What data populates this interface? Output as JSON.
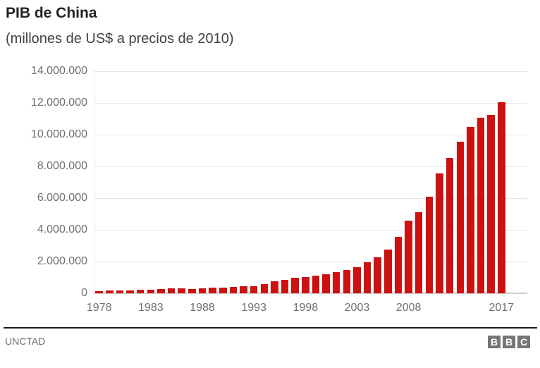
{
  "header": {
    "title": "PIB de China",
    "subtitle": "(millones de US$ a precios de 2010)"
  },
  "footer": {
    "source": "UNCTAD",
    "logo_letters": [
      "B",
      "B",
      "C"
    ]
  },
  "colors": {
    "bar": "#cc1111",
    "grid": "#e7e7e7",
    "axis": "#cfcfcf",
    "tick_text": "#6e6e73",
    "title_text": "#222222",
    "subtitle_text": "#404040",
    "footer_line": "#1a1a1a",
    "logo_bg": "#757575"
  },
  "chart_data": {
    "type": "bar",
    "title": "PIB de China",
    "subtitle": "(millones de US$ a precios de 2010)",
    "source": "UNCTAD",
    "xlabel": "",
    "ylabel": "",
    "grid": true,
    "legend": false,
    "ylim": [
      0,
      14000000
    ],
    "y_tick_values": [
      0,
      2000000,
      4000000,
      6000000,
      8000000,
      10000000,
      12000000,
      14000000
    ],
    "y_tick_labels": [
      "0",
      "2.000.000",
      "4.000.000",
      "6.000.000",
      "8.000.000",
      "10.000.000",
      "12.000.000",
      "14.000.000"
    ],
    "x_tick_years": [
      1978,
      1983,
      1988,
      1993,
      1998,
      2003,
      2008,
      2017
    ],
    "years": [
      1978,
      1979,
      1980,
      1981,
      1982,
      1983,
      1984,
      1985,
      1986,
      1987,
      1988,
      1989,
      1990,
      1991,
      1992,
      1993,
      1994,
      1995,
      1996,
      1997,
      1998,
      1999,
      2000,
      2001,
      2002,
      2003,
      2004,
      2005,
      2006,
      2007,
      2008,
      2009,
      2010,
      2011,
      2012,
      2013,
      2014,
      2015,
      2016,
      2017
    ],
    "values_millions_usd": [
      150000,
      180000,
      190000,
      196000,
      205000,
      230000,
      260000,
      310000,
      300000,
      275000,
      310000,
      350000,
      360000,
      385000,
      425000,
      445000,
      565000,
      735000,
      865000,
      960000,
      1030000,
      1095000,
      1210000,
      1340000,
      1470000,
      1660000,
      1955000,
      2285000,
      2750000,
      3550000,
      4595000,
      5100000,
      6090000,
      7550000,
      8530000,
      9570000,
      10475000,
      11060000,
      11235000,
      12050000
    ]
  }
}
